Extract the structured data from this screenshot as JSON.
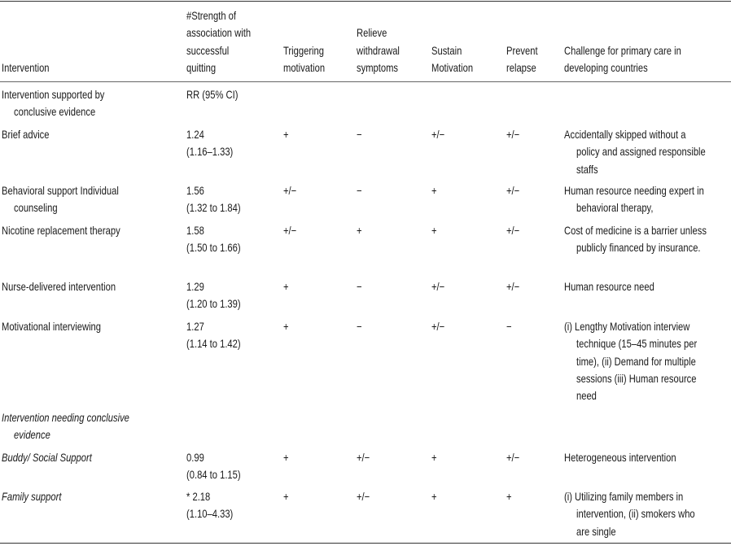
{
  "table": {
    "header": [
      [
        "Intervention"
      ],
      [
        "#Strength of",
        "association with",
        "successful",
        "quitting"
      ],
      [
        "Triggering",
        "motivation"
      ],
      [
        "Relieve",
        "withdrawal",
        "symptoms"
      ],
      [
        "Sustain",
        "Motivation"
      ],
      [
        "Prevent",
        "relapse"
      ],
      [
        "Challenge for primary care in",
        "developing countries"
      ]
    ],
    "rows": [
      {
        "cells": [
          [
            "Intervention supported by",
            "conclusive evidence"
          ],
          [
            "RR (95% CI)"
          ],
          [],
          [],
          [],
          [],
          []
        ]
      },
      {
        "cells": [
          [
            "Brief advice"
          ],
          [
            "1.24",
            "(1.16–1.33)"
          ],
          [
            "+"
          ],
          [
            "−"
          ],
          [
            "+/−"
          ],
          [
            "+/−"
          ],
          [
            "Accidentally skipped without a",
            "policy and assigned responsible",
            "staffs"
          ]
        ]
      },
      {
        "cells": [
          [
            "Behavioral support Individual",
            "counseling"
          ],
          [
            "1.56",
            "(1.32 to 1.84)"
          ],
          [
            "+/−"
          ],
          [
            "−"
          ],
          [
            "+"
          ],
          [
            "+/−"
          ],
          [
            "Human resource needing expert in",
            "behavioral therapy,"
          ]
        ]
      },
      {
        "cells": [
          [
            "Nicotine replacement therapy"
          ],
          [
            "1.58",
            "(1.50 to 1.66)"
          ],
          [
            "+/−"
          ],
          [
            "+"
          ],
          [
            "+"
          ],
          [
            "+/−"
          ],
          [
            "Cost of medicine is a barrier unless",
            "publicly financed by insurance."
          ]
        ]
      },
      {
        "cells": [
          [
            "Nurse-delivered intervention"
          ],
          [
            "1.29",
            "(1.20 to 1.39)"
          ],
          [
            "+"
          ],
          [
            "−"
          ],
          [
            "+/−"
          ],
          [
            "+/−"
          ],
          [
            "Human resource need"
          ]
        ]
      },
      {
        "cells": [
          [
            "Motivational interviewing"
          ],
          [
            "1.27",
            "(1.14 to 1.42)"
          ],
          [
            "+"
          ],
          [
            "−"
          ],
          [
            "+/−"
          ],
          [
            "−"
          ],
          [
            "(i) Lengthy Motivation interview",
            "technique (15–45 minutes per",
            "time), (ii) Demand for multiple",
            "sessions (iii) Human resource",
            "need"
          ]
        ]
      },
      {
        "cells": [
          [
            "Intervention needing conclusive",
            "evidence"
          ],
          [],
          [],
          [],
          [],
          [],
          []
        ],
        "italic": true
      },
      {
        "cells": [
          [
            "Buddy/ Social Support"
          ],
          [
            "0.99",
            "(0.84 to 1.15)"
          ],
          [
            "+"
          ],
          [
            "+/−"
          ],
          [
            "+"
          ],
          [
            "+/−"
          ],
          [
            "Heterogeneous intervention"
          ]
        ],
        "italic": true
      },
      {
        "cells": [
          [
            "Family support"
          ],
          [
            "* 2.18",
            "(1.10–4.33)"
          ],
          [
            "+"
          ],
          [
            "+/−"
          ],
          [
            "+"
          ],
          [
            "+"
          ],
          [
            "(i) Utilizing family members in",
            "intervention, (ii) smokers who",
            "are single"
          ]
        ],
        "italic": true
      }
    ]
  }
}
